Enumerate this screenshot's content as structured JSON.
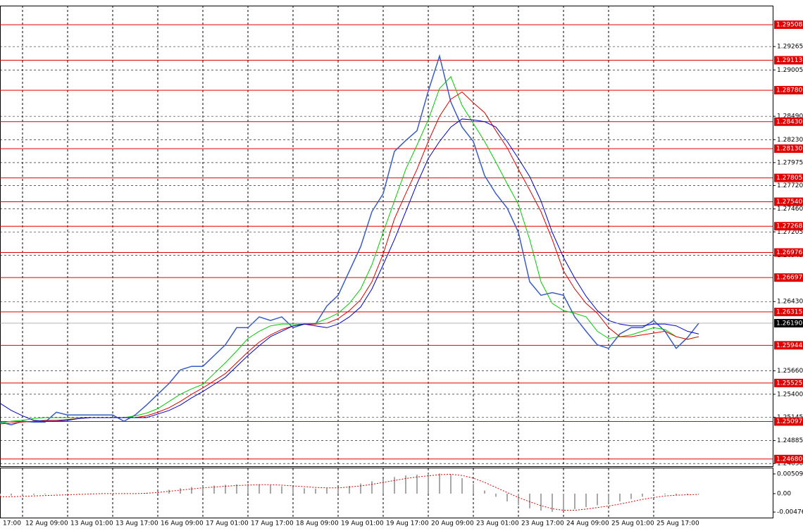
{
  "chart_data": {
    "type": "line",
    "categories": [
      "17:00",
      null,
      "12 Aug 09:00",
      null,
      null,
      null,
      "13 Aug 01:00",
      null,
      null,
      null,
      "13 Aug 17:00",
      null,
      null,
      null,
      "16 Aug 09:00",
      null,
      null,
      null,
      "17 Aug 01:00",
      null,
      null,
      null,
      "17 Aug 17:00",
      null,
      null,
      null,
      "18 Aug 09:00",
      null,
      null,
      null,
      "19 Aug 01:00",
      null,
      null,
      null,
      "19 Aug 17:00",
      null,
      null,
      null,
      "20 Aug 09:00",
      null,
      null,
      null,
      "23 Aug 01:00",
      null,
      null,
      null,
      "23 Aug 17:00",
      null,
      null,
      null,
      "24 Aug 09:00",
      null,
      null,
      null,
      "25 Aug 01:00",
      null,
      null,
      null,
      "25 Aug 17:00",
      null,
      null,
      null,
      null
    ],
    "series": [
      {
        "color": "#3a5bc7",
        "values": [
          1.2509,
          1.2506,
          1.251,
          1.2509,
          1.2509,
          1.252,
          1.2517,
          1.2517,
          1.2517,
          1.2517,
          1.2517,
          1.251,
          1.2517,
          1.2528,
          1.254,
          1.2552,
          1.2567,
          1.2571,
          1.2571,
          1.2583,
          1.2595,
          1.2614,
          1.2614,
          1.2626,
          1.2622,
          1.2626,
          1.2614,
          1.2618,
          1.2618,
          1.2638,
          1.265,
          1.2677,
          1.2704,
          1.2743,
          1.2763,
          1.281,
          1.2822,
          1.2833,
          1.2877,
          1.2916,
          1.2865,
          1.2837,
          1.2821,
          1.2783,
          1.2763,
          1.2747,
          1.272,
          1.2665,
          1.265,
          1.2653,
          1.265,
          1.2626,
          1.261,
          1.2595,
          1.2591,
          1.2607,
          1.2614,
          1.2614,
          1.2622,
          1.261,
          1.2591,
          1.2603,
          1.2619
        ]
      },
      {
        "color": "#00cc00",
        "values": [
          1.2508,
          1.251,
          1.2511,
          1.2513,
          1.2514,
          1.2514,
          1.2514,
          1.2514,
          1.2514,
          1.2514,
          1.2514,
          1.2514,
          1.2516,
          1.2519,
          1.2524,
          1.2532,
          1.254,
          1.2546,
          1.2551,
          1.2563,
          1.2575,
          1.2588,
          1.2602,
          1.261,
          1.2616,
          1.2618,
          1.2618,
          1.2618,
          1.2619,
          1.2624,
          1.263,
          1.2641,
          1.2657,
          1.2684,
          1.272,
          1.2755,
          1.279,
          1.2817,
          1.2845,
          1.288,
          1.2893,
          1.2861,
          1.2841,
          1.2821,
          1.2798,
          1.2774,
          1.2751,
          1.2712,
          1.2665,
          1.2641,
          1.2633,
          1.263,
          1.2626,
          1.261,
          1.2602,
          1.2604,
          1.2606,
          1.261,
          1.2614,
          1.2612,
          1.2604,
          1.2601,
          1.2604
        ]
      },
      {
        "color": "#e00000",
        "values": [
          1.2507,
          1.2508,
          1.2509,
          1.251,
          1.2511,
          1.2511,
          1.2512,
          1.2513,
          1.2514,
          1.2514,
          1.2514,
          1.2514,
          1.2514,
          1.2516,
          1.252,
          1.2525,
          1.2532,
          1.254,
          1.2547,
          1.2555,
          1.2563,
          1.2575,
          1.2587,
          1.2598,
          1.2606,
          1.2612,
          1.2616,
          1.2618,
          1.2618,
          1.2619,
          1.2624,
          1.2633,
          1.2645,
          1.2665,
          1.2696,
          1.2735,
          1.2763,
          1.279,
          1.2821,
          1.2849,
          1.2868,
          1.2876,
          1.2864,
          1.2853,
          1.2833,
          1.2814,
          1.279,
          1.2767,
          1.2743,
          1.2712,
          1.2677,
          1.2657,
          1.2641,
          1.263,
          1.2614,
          1.2604,
          1.2604,
          1.2606,
          1.2608,
          1.261,
          1.2604,
          1.2601,
          1.2604
        ]
      },
      {
        "color": "#0000cc",
        "values": [
          1.253,
          1.2522,
          1.2516,
          1.2511,
          1.251,
          1.251,
          1.2511,
          1.2513,
          1.2514,
          1.2514,
          1.2514,
          1.2514,
          1.2514,
          1.2514,
          1.2518,
          1.2522,
          1.2528,
          1.2536,
          1.2543,
          1.2551,
          1.2559,
          1.2571,
          1.2583,
          1.2594,
          1.2604,
          1.261,
          1.2616,
          1.2618,
          1.2616,
          1.2614,
          1.2618,
          1.2626,
          1.2637,
          1.2657,
          1.2684,
          1.2712,
          1.2743,
          1.2774,
          1.2802,
          1.2821,
          1.2837,
          1.2846,
          1.2845,
          1.2843,
          1.2837,
          1.2821,
          1.2802,
          1.2782,
          1.2755,
          1.272,
          1.2692,
          1.2669,
          1.2649,
          1.2633,
          1.2622,
          1.2618,
          1.2616,
          1.2616,
          1.2618,
          1.2618,
          1.2616,
          1.261,
          1.2607
        ]
      }
    ],
    "ylim": [
      1.246,
      1.2972
    ],
    "yticks": [
      1.29265,
      1.29005,
      {
        "value": 1.2849,
        "label": "1.28490"
      },
      {
        "value": 1.2823,
        "label": "1.28230"
      },
      1.27975,
      {
        "value": 1.2772,
        "label": "1.27720"
      },
      {
        "value": 1.2746,
        "label": "1.27460"
      },
      1.27205,
      1.26945,
      {
        "value": 1.2643,
        "label": "1.26430"
      },
      {
        "value": 1.2566,
        "label": "1.25660"
      },
      {
        "value": 1.254,
        "label": "1.25400"
      },
      1.25145,
      1.24885,
      {
        "value": 1.2463,
        "label": "1.24630"
      }
    ],
    "levels": [
      1.29508,
      1.29113,
      {
        "value": 1.2878,
        "label": "1.28780"
      },
      {
        "value": 1.2843,
        "label": "1.28430"
      },
      {
        "value": 1.2813,
        "label": "1.28130"
      },
      1.27805,
      {
        "value": 1.2754,
        "label": "1.27540"
      },
      1.27268,
      1.26976,
      1.26697,
      1.26315,
      1.25944,
      1.25525,
      1.25097,
      {
        "value": 1.2468,
        "label": "1.24680"
      }
    ],
    "levels_color": "#e00000",
    "current_price": {
      "value": 1.2619,
      "label": "1.26190"
    },
    "grid": true,
    "indicator": {
      "type": "bar",
      "color": "#a8a8a8",
      "signal_color": "#e00000",
      "ylim": [
        -0.0062,
        0.00654
      ],
      "yticks": [
        0.00509,
        {
          "value": 0,
          "label": "0.00"
        },
        -0.00476
      ],
      "values": [
        -0.0006,
        -0.0005,
        -0.0004,
        -0.0003,
        -0.0002,
        -0.0001,
        0,
        0,
        0,
        0,
        0,
        0,
        0,
        0.0002,
        0.0006,
        0.001,
        0.0014,
        0.0017,
        0.0019,
        0.0021,
        0.0023,
        0.0024,
        0.0025,
        0.0024,
        0.0022,
        0.0019,
        0.0016,
        0.0014,
        0.0013,
        0.0014,
        0.0016,
        0.002,
        0.0026,
        0.0032,
        0.0038,
        0.0043,
        0.0047,
        0.0049,
        0.0051,
        0.0052,
        0.005,
        0.004,
        0.0025,
        0.0008,
        -0.0008,
        -0.002,
        -0.003,
        -0.0038,
        -0.0044,
        -0.0047,
        -0.0045,
        -0.004,
        -0.0035,
        -0.003,
        -0.0026,
        -0.002,
        -0.0014,
        -0.0008,
        -0.0004,
        -0.0002,
        -0.0003,
        -0.0002,
        0
      ],
      "signal": [
        -0.0008,
        -0.0008,
        -0.0007,
        -0.0006,
        -0.0005,
        -0.0004,
        -0.0003,
        -0.0002,
        -0.0001,
        0,
        0,
        0,
        0,
        0.0001,
        0.0003,
        0.0006,
        0.0009,
        0.0012,
        0.0015,
        0.0017,
        0.0019,
        0.0021,
        0.0022,
        0.0023,
        0.0023,
        0.0022,
        0.002,
        0.0018,
        0.0016,
        0.0015,
        0.0015,
        0.0017,
        0.002,
        0.0024,
        0.0029,
        0.0034,
        0.0039,
        0.0043,
        0.0046,
        0.0049,
        0.005,
        0.0047,
        0.004,
        0.0029,
        0.0016,
        0.0003,
        -0.001,
        -0.0021,
        -0.0031,
        -0.0039,
        -0.0043,
        -0.0043,
        -0.004,
        -0.0036,
        -0.0032,
        -0.0027,
        -0.0021,
        -0.0015,
        -0.001,
        -0.0006,
        -0.0004,
        -0.0003,
        -0.0002
      ]
    }
  }
}
